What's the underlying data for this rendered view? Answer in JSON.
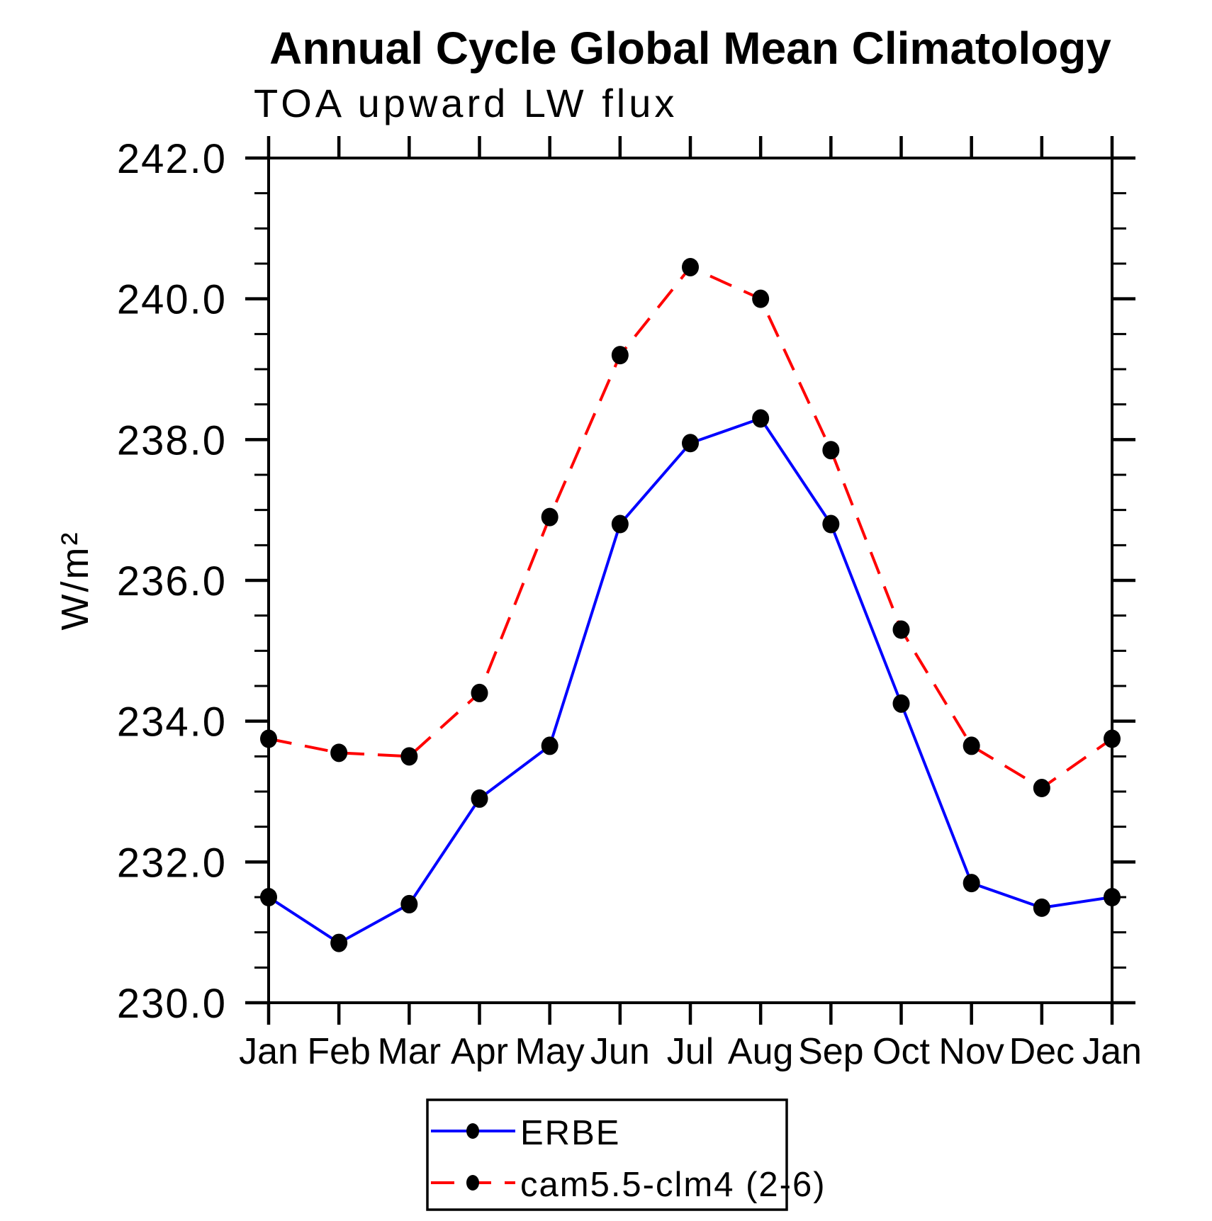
{
  "title": "Annual Cycle Global Mean Climatology",
  "subtitle": "TOA upward LW flux",
  "ylabel": "W/m²",
  "chart_data": {
    "type": "line",
    "categories": [
      "Jan",
      "Feb",
      "Mar",
      "Apr",
      "May",
      "Jun",
      "Jul",
      "Aug",
      "Sep",
      "Oct",
      "Nov",
      "Dec",
      "Jan"
    ],
    "series": [
      {
        "name": "ERBE",
        "color": "#0000ff",
        "line_style": "solid",
        "values": [
          231.5,
          230.85,
          231.4,
          232.9,
          233.65,
          236.8,
          237.95,
          238.3,
          236.8,
          234.25,
          231.7,
          231.35,
          231.5
        ]
      },
      {
        "name": "cam5.5-clm4 (2-6)",
        "color": "#ff0000",
        "line_style": "dashed",
        "values": [
          233.75,
          233.55,
          233.5,
          234.4,
          236.9,
          239.2,
          240.45,
          240.0,
          237.85,
          235.3,
          233.65,
          233.05,
          233.75
        ]
      }
    ],
    "ylim": [
      230.0,
      242.0
    ],
    "ytick_major_step": 2.0,
    "ytick_minor_step": 0.5,
    "ytick_labels": [
      "230.0",
      "232.0",
      "234.0",
      "236.0",
      "238.0",
      "240.0",
      "242.0"
    ],
    "xlabel": "",
    "grid": false,
    "legend_position": "bottom-center",
    "marker": {
      "shape": "filled-circle",
      "color": "#000000"
    },
    "frame_color": "#000000"
  }
}
